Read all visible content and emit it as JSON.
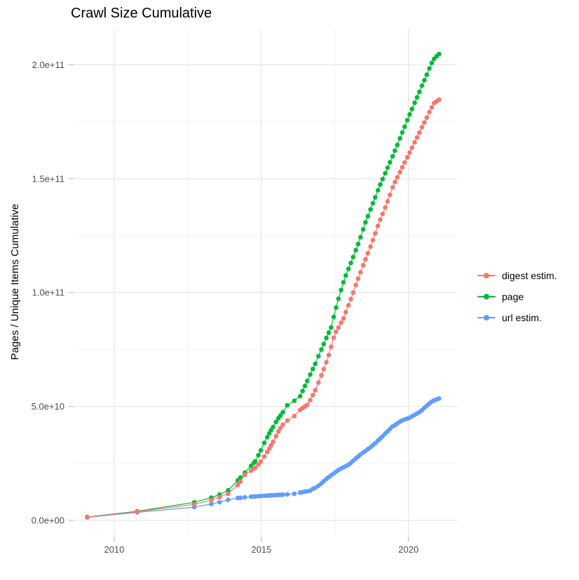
{
  "chart_data": {
    "type": "line",
    "title": "Crawl Size Cumulative",
    "xlabel": "",
    "ylabel": "Pages / Unique Items Cumulative",
    "grid": true,
    "legend_position": "right",
    "panel_background": "#ffffff",
    "grid_major_color": "#e6e6e6",
    "grid_minor_color": "#f2f2f2",
    "tick_color": "#bdbdbd",
    "axis_text_color": "#4d4d4d",
    "xlim": [
      2008.62,
      2021.65
    ],
    "ylim_e9": [
      -7.4,
      215.5
    ],
    "x_major_ticks": [
      {
        "value": 2010,
        "label": "2010"
      },
      {
        "value": 2015,
        "label": "2015"
      },
      {
        "value": 2020,
        "label": "2020"
      }
    ],
    "x_minor_ticks": [
      2012.5,
      2017.5
    ],
    "y_major_ticks": [
      {
        "value_e9": 0,
        "label": "0.0e+00"
      },
      {
        "value_e9": 50,
        "label": "5.0e+10"
      },
      {
        "value_e9": 100,
        "label": "1.0e+11"
      },
      {
        "value_e9": 150,
        "label": "1.5e+11"
      },
      {
        "value_e9": 200,
        "label": "2.0e+11"
      }
    ],
    "y_minor_ticks_e9": [
      25,
      75,
      125,
      175
    ],
    "value_unit": "1e9 (billions of pages / unique items)",
    "x_years": [
      2009.08,
      2010.78,
      2012.72,
      2013.3,
      2013.58,
      2013.87,
      2014.2,
      2014.29,
      2014.44,
      2014.65,
      2014.75,
      2014.79,
      2014.9,
      2014.98,
      2015.1,
      2015.2,
      2015.27,
      2015.33,
      2015.4,
      2015.5,
      2015.58,
      2015.65,
      2015.73,
      2015.88,
      2016.12,
      2016.32,
      2016.4,
      2016.48,
      2016.56,
      2016.66,
      2016.75,
      2016.83,
      2016.94,
      2017.04,
      2017.12,
      2017.21,
      2017.29,
      2017.37,
      2017.46,
      2017.54,
      2017.62,
      2017.71,
      2017.79,
      2017.87,
      2017.96,
      2018.04,
      2018.12,
      2018.21,
      2018.29,
      2018.37,
      2018.46,
      2018.54,
      2018.62,
      2018.71,
      2018.79,
      2018.87,
      2018.96,
      2019.04,
      2019.12,
      2019.21,
      2019.29,
      2019.37,
      2019.46,
      2019.54,
      2019.62,
      2019.71,
      2019.79,
      2019.87,
      2019.96,
      2020.04,
      2020.12,
      2020.21,
      2020.29,
      2020.37,
      2020.46,
      2020.54,
      2020.62,
      2020.71,
      2020.79,
      2020.87,
      2020.96,
      2021.04
    ],
    "series": [
      {
        "name": "digest estim.",
        "color": "#F8766D",
        "values_e9": [
          1.4,
          3.8,
          7.0,
          8.9,
          10.2,
          11.7,
          15.5,
          17.0,
          20.0,
          21.8,
          22.7,
          23.1,
          24.5,
          25.8,
          28.0,
          30.0,
          31.5,
          33.0,
          34.5,
          37.0,
          39.0,
          40.5,
          42.0,
          43.8,
          45.8,
          48.5,
          49.3,
          50.0,
          50.7,
          52.8,
          55.0,
          57.1,
          60.5,
          63.7,
          66.4,
          69.4,
          72.6,
          76.2,
          80.2,
          82.8,
          84.7,
          86.8,
          88.7,
          91.4,
          94.4,
          97.1,
          100.0,
          103.3,
          106.1,
          108.9,
          112.0,
          114.6,
          117.3,
          120.2,
          123.0,
          126.0,
          129.3,
          132.0,
          134.5,
          137.3,
          140.0,
          142.9,
          146.2,
          148.5,
          150.6,
          152.9,
          155.0,
          157.1,
          159.4,
          161.5,
          163.6,
          166.0,
          168.1,
          170.2,
          172.6,
          174.7,
          176.8,
          179.2,
          181.3,
          183.2,
          184.0,
          184.7
        ]
      },
      {
        "name": "page",
        "color": "#00BA38",
        "values_e9": [
          1.5,
          4.0,
          7.9,
          10.0,
          11.3,
          13.2,
          17.5,
          18.8,
          21.0,
          23.9,
          25.3,
          25.9,
          28.6,
          30.7,
          34.0,
          36.5,
          38.2,
          39.6,
          41.0,
          43.2,
          44.8,
          46.0,
          47.5,
          50.5,
          52.5,
          54.5,
          56.8,
          59.0,
          61.2,
          64.0,
          66.5,
          68.7,
          72.1,
          75.0,
          77.4,
          80.1,
          82.4,
          84.7,
          89.3,
          93.4,
          97.3,
          101.1,
          104.5,
          107.5,
          110.4,
          113.0,
          115.6,
          118.6,
          121.3,
          124.3,
          127.7,
          130.8,
          133.5,
          136.5,
          139.2,
          141.8,
          144.9,
          147.4,
          149.8,
          152.4,
          154.8,
          157.2,
          159.8,
          162.3,
          164.8,
          167.7,
          170.3,
          172.8,
          175.7,
          178.2,
          180.6,
          183.3,
          185.7,
          188.1,
          190.8,
          193.2,
          195.6,
          198.4,
          200.8,
          202.6,
          203.8,
          204.7
        ]
      },
      {
        "name": "url estim.",
        "color": "#619CFF",
        "values_e9": [
          1.3,
          3.5,
          5.8,
          7.2,
          8.0,
          9.0,
          9.8,
          9.9,
          10.1,
          10.4,
          10.5,
          10.5,
          10.6,
          10.7,
          10.8,
          10.9,
          10.9,
          11.0,
          11.0,
          11.1,
          11.2,
          11.2,
          11.3,
          11.4,
          11.7,
          12.2,
          12.4,
          12.6,
          12.8,
          13.0,
          13.8,
          14.3,
          15.2,
          16.2,
          17.2,
          18.2,
          19.0,
          19.8,
          20.6,
          21.4,
          22.1,
          22.8,
          23.3,
          23.8,
          24.4,
          25.2,
          26.2,
          27.2,
          28.0,
          28.9,
          29.8,
          30.5,
          31.3,
          32.1,
          33.0,
          33.9,
          35.0,
          35.9,
          36.9,
          38.1,
          39.1,
          40.1,
          41.2,
          41.8,
          42.5,
          43.3,
          43.9,
          44.3,
          44.7,
          45.1,
          45.7,
          46.3,
          46.9,
          47.5,
          48.4,
          49.4,
          50.3,
          51.3,
          52.1,
          52.7,
          53.1,
          53.5
        ]
      }
    ],
    "draw_order_indices": [
      1,
      2,
      0
    ],
    "legend": {
      "items": [
        "digest estim.",
        "page",
        "url estim."
      ]
    }
  }
}
